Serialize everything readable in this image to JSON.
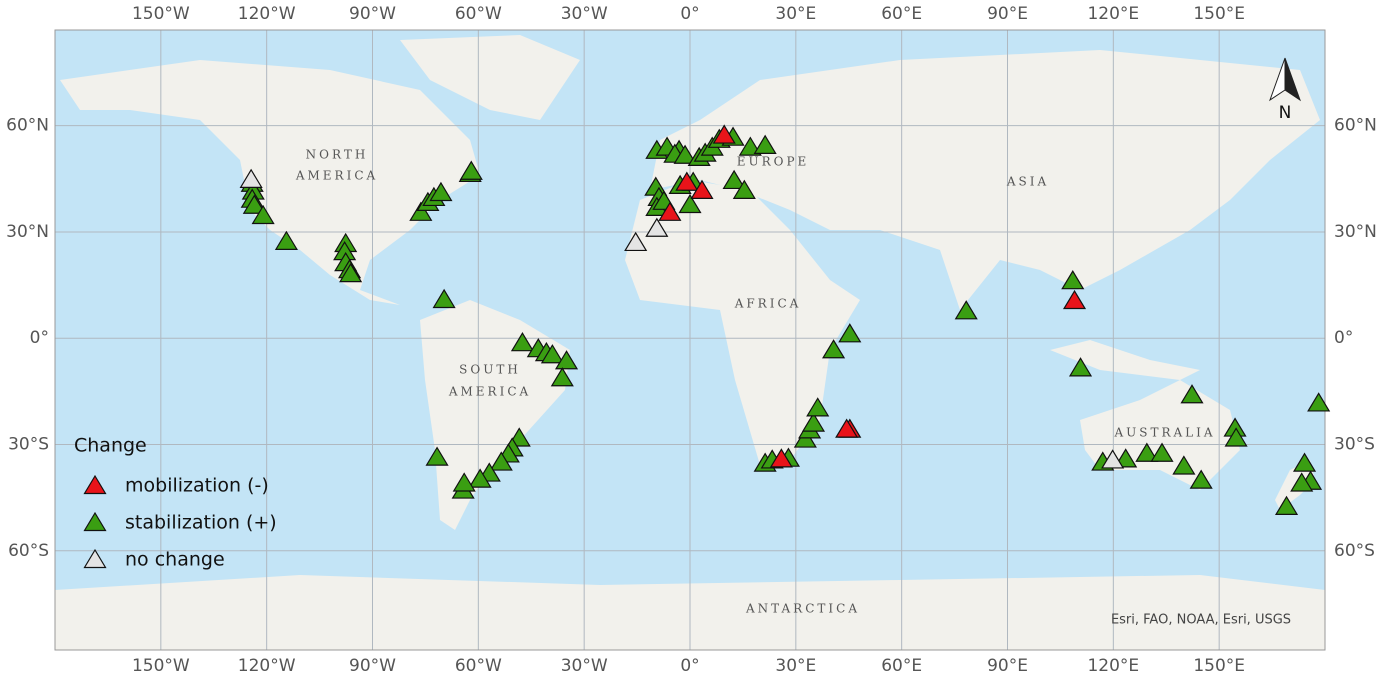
{
  "map": {
    "xlim": [
      -180,
      180
    ],
    "ylim": [
      -88,
      87
    ],
    "xticks": [
      {
        "value": -150,
        "label": "150°W"
      },
      {
        "value": -120,
        "label": "120°W"
      },
      {
        "value": -90,
        "label": "90°W"
      },
      {
        "value": -60,
        "label": "60°W"
      },
      {
        "value": -30,
        "label": "30°W"
      },
      {
        "value": 0,
        "label": "0°"
      },
      {
        "value": 30,
        "label": "30°E"
      },
      {
        "value": 60,
        "label": "60°E"
      },
      {
        "value": 90,
        "label": "90°E"
      },
      {
        "value": 120,
        "label": "120°E"
      },
      {
        "value": 150,
        "label": "150°E"
      }
    ],
    "yticks": [
      {
        "value": -60,
        "label": "60°S"
      },
      {
        "value": -30,
        "label": "30°S"
      },
      {
        "value": 0,
        "label": "0°"
      },
      {
        "value": 30,
        "label": "30°N"
      },
      {
        "value": 60,
        "label": "60°N"
      }
    ],
    "grid": true,
    "labels": {
      "north_america": [
        "NORTH",
        "AMERICA"
      ],
      "south_america": [
        "SOUTH",
        "AMERICA"
      ],
      "europe": "EUROPE",
      "asia": "ASIA",
      "africa": "AFRICA",
      "australia": "AUSTRALIA",
      "antarctica": "ANTARCTICA"
    },
    "north": "N",
    "attribution": "Esri, FAO, NOAA, Esri, USGS",
    "legend_title": "Change",
    "series": [
      {
        "name": "stabilization (+)",
        "color": "#3a9e12",
        "lon": [
          -124.1,
          -123.8,
          -124.1,
          -123.5,
          -121,
          -114.4,
          -97.6,
          -97.9,
          -97.6,
          -96.5,
          -96.2,
          -76.3,
          -74.3,
          -72.6,
          -70.6,
          -62.3,
          -62,
          -69.7,
          -47.5,
          -43,
          -40.7,
          -39,
          -35,
          -36.2,
          -48.4,
          -50.4,
          -51.5,
          -53.5,
          -56.9,
          -59.5,
          -64.3,
          -64,
          -71.7,
          -9.4,
          -6.5,
          -3.1,
          -4.3,
          -1.4,
          2.6,
          4.3,
          6.3,
          8.3,
          12.2,
          17.1,
          21.3,
          12.5,
          15.4,
          -9.7,
          -8.8,
          -9.4,
          -7.4,
          0,
          -2.8,
          0.9,
          21.3,
          23.3,
          27.9,
          32.7,
          33.9,
          35,
          36.2,
          40.7,
          45.3,
          78.3,
          108.5,
          110.7,
          117,
          123.5,
          129.5,
          133.8,
          140,
          144.9,
          142.3,
          154.5,
          154.8,
          178.2,
          174.2,
          175.9,
          169.1,
          173.4
        ],
        "lat": [
          43.6,
          41.4,
          39.1,
          37.4,
          34.5,
          27.2,
          26.6,
          24.3,
          21.2,
          19.2,
          18.1,
          35.4,
          38.2,
          39.6,
          41,
          46.4,
          47,
          10.8,
          -1.4,
          -3.1,
          -4.2,
          -4.8,
          -6.5,
          -11.3,
          -28.3,
          -31.1,
          -32.8,
          -35.1,
          -38.2,
          -39.9,
          -43,
          -41,
          -33.7,
          52.9,
          53.8,
          52.9,
          51.8,
          51.5,
          50.9,
          52.1,
          53.8,
          56,
          56.6,
          53.8,
          54.3,
          44.4,
          41.6,
          42.5,
          39.6,
          36.8,
          38.5,
          37.6,
          43,
          43.9,
          -35.4,
          -34.5,
          -34,
          -28.6,
          -26,
          -24.1,
          -19.8,
          -3.4,
          1.1,
          7.6,
          16.1,
          -8.5,
          -35.1,
          -34.2,
          -32.6,
          -32.6,
          -36.2,
          -40.2,
          -16.1,
          -25.5,
          -28.3,
          -18.4,
          -35.4,
          -40.5,
          -47.6,
          -41
        ]
      },
      {
        "name": "mobilization (-)",
        "color": "#e8141a",
        "lon": [
          9.7,
          -0.9,
          3.4,
          -5.7,
          45.3,
          44.4,
          25.9,
          109
        ],
        "lat": [
          57.2,
          43.9,
          41.6,
          35.4,
          -25.8,
          -25.8,
          -34.2,
          10.5
        ]
      },
      {
        "name": "no change",
        "color": "#e4e4e4",
        "lon": [
          -124.4,
          -15.4,
          -9.4,
          119.8
        ],
        "lat": [
          44.7,
          26.9,
          30.9,
          -34.5
        ]
      }
    ],
    "legend_order": [
      1,
      0,
      2
    ]
  }
}
